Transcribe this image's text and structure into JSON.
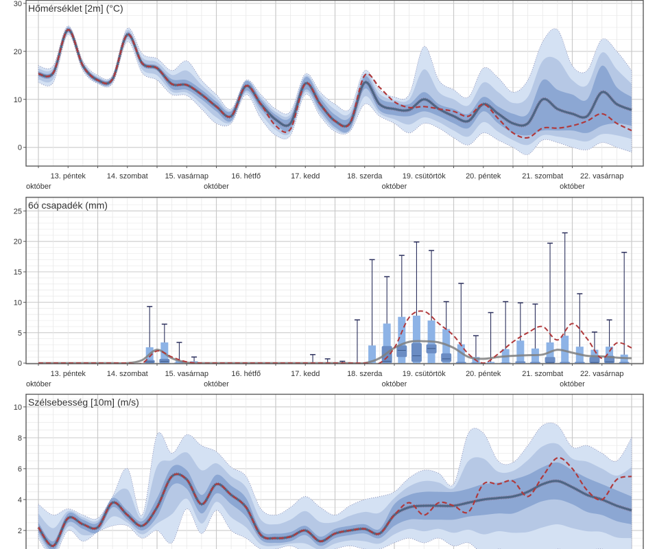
{
  "x_axis": {
    "unit": "hours since 13 October 00:00",
    "day_labels": [
      "13. péntek",
      "14. szombat",
      "15. vasárnap",
      "16. hétfő",
      "17. kedd",
      "18. szerda",
      "19. csütörtök",
      "20. péntek",
      "21. szombat",
      "22. vasárnap"
    ],
    "month_label": "október"
  },
  "colors": {
    "outer_band": "#d4e1f3",
    "inner_band": "#7e9ccc",
    "median_line": "#4d6584",
    "deterministic_line": "#b0393b",
    "box_light": "#8db3e6",
    "box_dark": "#6a8cc3",
    "whisker": "#2b2f5c",
    "mean_line": "#7f7f7f"
  },
  "chart_data": [
    {
      "type": "line",
      "title": "Hőmérséklet [2m] (°C)",
      "ylim": [
        -3.9,
        30.7
      ],
      "yticks": [
        "0",
        "10",
        "20",
        "30"
      ],
      "x_hours": [
        0,
        6,
        12,
        18,
        24,
        30,
        36,
        42,
        48,
        54,
        60,
        66,
        72,
        78,
        84,
        90,
        96,
        102,
        108,
        114,
        120,
        126,
        132,
        138,
        144,
        150,
        156,
        162,
        168,
        174,
        180,
        186,
        192,
        198,
        204,
        210,
        216,
        222,
        228,
        234,
        240
      ],
      "median": [
        15.3,
        15.5,
        24.5,
        17,
        14,
        14.2,
        23.5,
        17.5,
        16.5,
        13.2,
        13,
        11,
        8.5,
        6.5,
        12.8,
        9,
        5.8,
        5,
        13.3,
        9,
        5.5,
        5,
        13.5,
        9,
        8,
        7.8,
        10,
        8,
        6.5,
        5.5,
        9,
        7,
        5,
        5,
        10,
        8,
        7,
        6.5,
        11.5,
        9,
        7.8
      ],
      "deterministic": [
        15.3,
        15.5,
        24.5,
        17,
        14,
        14.2,
        23.5,
        17.5,
        16.5,
        13.2,
        13,
        11,
        8.5,
        6.5,
        12.8,
        9,
        4.5,
        3.8,
        13.3,
        9,
        5.5,
        5,
        15,
        12.5,
        9.5,
        8.3,
        8.5,
        8,
        7.5,
        6.5,
        9,
        6,
        3,
        2,
        4,
        4,
        4.5,
        5.5,
        7,
        5,
        3.5
      ],
      "min": [
        13.5,
        13.5,
        23.5,
        16,
        13.3,
        13.3,
        22,
        15.5,
        14,
        11,
        10.8,
        8,
        5,
        5,
        11,
        6,
        2.5,
        2.5,
        11,
        6.5,
        3.3,
        3.3,
        9,
        6.5,
        5,
        3,
        5,
        4,
        2,
        0.5,
        3,
        1.5,
        0,
        -1.5,
        1.5,
        1,
        0,
        -0.5,
        1,
        0,
        -1
      ],
      "max": [
        17,
        17,
        25.3,
        18,
        15,
        15,
        24.8,
        19.5,
        18.5,
        16,
        18,
        14,
        11,
        8,
        14,
        11,
        8,
        7.5,
        15.3,
        11.5,
        9,
        8,
        16,
        12,
        10.5,
        11,
        21,
        14,
        12,
        10.5,
        16.5,
        14.5,
        11.5,
        14,
        22,
        24.5,
        17,
        16,
        22.5,
        20,
        16
      ],
      "q25": [
        14.8,
        15,
        24,
        16.5,
        13.5,
        13.7,
        23,
        17,
        16,
        12.2,
        12,
        10,
        7.5,
        5.5,
        11.8,
        8,
        4.8,
        3.7,
        12,
        7.7,
        4.2,
        3.7,
        12.2,
        7.7,
        6.7,
        6.5,
        7.5,
        6.5,
        5,
        4,
        7.5,
        5,
        3,
        2.5,
        3.5,
        3.5,
        3.5,
        3,
        4.5,
        5,
        4.5
      ],
      "q75": [
        15.8,
        16,
        25,
        17.5,
        14.5,
        14.7,
        24,
        18,
        17,
        14.2,
        14,
        12,
        9.5,
        7.5,
        13.8,
        10,
        6.8,
        6.3,
        14.6,
        10.3,
        6.8,
        6.3,
        14.8,
        10.3,
        9.3,
        9,
        11.5,
        9,
        8,
        7,
        10.5,
        8.5,
        7,
        7,
        14,
        12,
        11,
        10,
        17,
        12.5,
        10.5
      ]
    },
    {
      "type": "box",
      "title": "6ó csapadék (mm)",
      "ylim": [
        -0.1,
        27.3
      ],
      "yticks": [
        "0",
        "5",
        "10",
        "15",
        "20",
        "25"
      ],
      "x_hours": [
        0,
        6,
        12,
        18,
        24,
        30,
        36,
        42,
        48,
        54,
        60,
        66,
        72,
        78,
        84,
        90,
        96,
        102,
        108,
        114,
        120,
        126,
        132,
        138,
        144,
        150,
        156,
        162,
        168,
        174,
        180,
        186,
        192,
        198,
        204,
        210,
        216,
        222,
        228,
        234,
        240
      ],
      "ensemble_mean": [
        0,
        0,
        0,
        0,
        0,
        0,
        0,
        0.5,
        2.2,
        0.8,
        0.1,
        0,
        0,
        0,
        0,
        0,
        0,
        0,
        0,
        0,
        0,
        0,
        0,
        0.8,
        2.5,
        3.5,
        3.6,
        3.4,
        2.5,
        1.0,
        0.7,
        1.0,
        1.2,
        1.3,
        1.4,
        2.2,
        1.7,
        1.2,
        1.1,
        0.9,
        0.8
      ],
      "deterministic": [
        0,
        0,
        0,
        0,
        0,
        0,
        0,
        0,
        2.0,
        1.0,
        0.2,
        0,
        0,
        0,
        0,
        0,
        0,
        0,
        0,
        0,
        0,
        0,
        0,
        0,
        2.5,
        7.5,
        8.5,
        6.5,
        4.5,
        1.5,
        0,
        1.5,
        3.5,
        5,
        6,
        3.8,
        6.5,
        4,
        0.8,
        3.3,
        2.5
      ],
      "boxes": [
        {
          "t": 45,
          "max": 9.3,
          "p90": 2.6,
          "q75": 0.5,
          "median": 0.2,
          "q25": 0
        },
        {
          "t": 51,
          "max": 6.4,
          "p90": 3.4,
          "q75": 0.7,
          "median": 0.3,
          "q25": 0
        },
        {
          "t": 57,
          "max": 3.4,
          "p90": 0.4,
          "q75": 0.1,
          "median": 0,
          "q25": 0
        },
        {
          "t": 63,
          "max": 1.0,
          "p90": 0.3,
          "q75": 0,
          "median": 0,
          "q25": 0
        },
        {
          "t": 111,
          "max": 1.4,
          "p90": 0,
          "q75": 0,
          "median": 0,
          "q25": 0
        },
        {
          "t": 117,
          "max": 0.7,
          "p90": 0,
          "q75": 0,
          "median": 0,
          "q25": 0
        },
        {
          "t": 123,
          "max": 0.3,
          "p90": 0,
          "q75": 0,
          "median": 0,
          "q25": 0
        },
        {
          "t": 129,
          "max": 7.1,
          "p90": 0,
          "q75": 0,
          "median": 0,
          "q25": 0
        },
        {
          "t": 135,
          "max": 17.0,
          "p90": 2.9,
          "q75": 0,
          "median": 0,
          "q25": 0
        },
        {
          "t": 141,
          "max": 14.2,
          "p90": 6.5,
          "q75": 2.8,
          "median": 0.3,
          "q25": 0
        },
        {
          "t": 147,
          "max": 17.7,
          "p90": 7.6,
          "q75": 2.9,
          "median": 2.1,
          "q25": 1.0
        },
        {
          "t": 153,
          "max": 19.9,
          "p90": 7.8,
          "q75": 3.3,
          "median": 1.2,
          "q25": 0.2
        },
        {
          "t": 159,
          "max": 18.5,
          "p90": 7.0,
          "q75": 3.1,
          "median": 2.4,
          "q25": 1.6
        },
        {
          "t": 165,
          "max": 10.1,
          "p90": 5.6,
          "q75": 1.6,
          "median": 0.7,
          "q25": 0.2
        },
        {
          "t": 171,
          "max": 13.1,
          "p90": 3.1,
          "q75": 0.2,
          "median": 0,
          "q25": 0
        },
        {
          "t": 177,
          "max": 4.5,
          "p90": 1.0,
          "q75": 0.1,
          "median": 0,
          "q25": 0
        },
        {
          "t": 183,
          "max": 8.3,
          "p90": 0.2,
          "q75": 0,
          "median": 0,
          "q25": 0
        },
        {
          "t": 189,
          "max": 10.1,
          "p90": 2.3,
          "q75": 0.1,
          "median": 0,
          "q25": 0
        },
        {
          "t": 195,
          "max": 9.9,
          "p90": 3.7,
          "q75": 0.3,
          "median": 0,
          "q25": 0
        },
        {
          "t": 201,
          "max": 9.7,
          "p90": 2.4,
          "q75": 0.2,
          "median": 0,
          "q25": 0
        },
        {
          "t": 207,
          "max": 19.7,
          "p90": 3.4,
          "q75": 1.0,
          "median": 0.1,
          "q25": 0
        },
        {
          "t": 213,
          "max": 21.4,
          "p90": 4.5,
          "q75": 0.2,
          "median": 0,
          "q25": 0
        },
        {
          "t": 219,
          "max": 11.4,
          "p90": 2.7,
          "q75": 0.2,
          "median": 0,
          "q25": 0
        },
        {
          "t": 225,
          "max": 5.1,
          "p90": 2.2,
          "q75": 1.0,
          "median": 0.1,
          "q25": 0
        },
        {
          "t": 231,
          "max": 7.1,
          "p90": 2.7,
          "q75": 1.2,
          "median": 0.2,
          "q25": 0
        },
        {
          "t": 237,
          "max": 18.2,
          "p90": 1.4,
          "q75": 0.2,
          "median": 0,
          "q25": 0
        }
      ]
    },
    {
      "type": "line",
      "title": "Szélsebesség [10m] (m/s)",
      "ylim": [
        0,
        10.84
      ],
      "yticks": [
        "2",
        "4",
        "6",
        "8",
        "10"
      ],
      "x_hours": [
        0,
        6,
        12,
        18,
        24,
        30,
        36,
        42,
        48,
        54,
        60,
        66,
        72,
        78,
        84,
        90,
        96,
        102,
        108,
        114,
        120,
        126,
        132,
        138,
        144,
        150,
        156,
        162,
        168,
        174,
        180,
        186,
        192,
        198,
        204,
        210,
        216,
        222,
        228,
        234,
        240
      ],
      "median": [
        2.2,
        1.0,
        2.8,
        2.4,
        2.2,
        3.8,
        3.0,
        2.3,
        3.5,
        5.5,
        5.3,
        3.7,
        5.0,
        4.3,
        3.5,
        1.7,
        1.5,
        1.6,
        2.0,
        1.3,
        1.8,
        2.0,
        2.1,
        1.8,
        3.0,
        3.5,
        3.6,
        3.6,
        3.6,
        3.8,
        4.0,
        4.1,
        4.2,
        4.5,
        5.0,
        5.2,
        4.8,
        4.3,
        4.0,
        3.6,
        3.3
      ],
      "deterministic": [
        2.2,
        1.0,
        2.8,
        2.4,
        2.2,
        3.8,
        3.0,
        2.3,
        3.5,
        5.5,
        5.3,
        3.7,
        5.0,
        4.3,
        3.5,
        1.7,
        1.5,
        1.6,
        2.0,
        1.3,
        1.8,
        2.0,
        2.1,
        1.8,
        3.0,
        3.8,
        3.0,
        3.8,
        3.6,
        3.2,
        5.0,
        5.0,
        5.2,
        4.2,
        5.5,
        6.7,
        6.0,
        4.6,
        4.0,
        5.3,
        5.5
      ],
      "min": [
        1.5,
        0.3,
        2.0,
        1.3,
        1.9,
        2.3,
        2.3,
        1.5,
        2.0,
        1.2,
        3.4,
        1.8,
        3.3,
        2.0,
        1.5,
        0.8,
        0.8,
        1.0,
        0.6,
        0.5,
        0.8,
        1.0,
        0.8,
        0.8,
        1.2,
        1.5,
        1.2,
        1.5,
        1.0,
        1.2,
        0.5,
        0.8,
        0.6,
        0.3,
        0.5,
        0.8,
        0.6,
        0.7,
        0.8,
        0.5,
        0.6
      ],
      "max": [
        3.7,
        3.0,
        3.4,
        3.0,
        2.8,
        4.2,
        6.0,
        3.0,
        8.2,
        7.0,
        8.2,
        7.5,
        7.1,
        6.1,
        5.5,
        3.4,
        3.0,
        3.5,
        4.2,
        3.5,
        3.0,
        3.6,
        4.0,
        4.2,
        4.5,
        5.4,
        5.9,
        5.7,
        5.0,
        8.3,
        8.3,
        6.5,
        6.4,
        7.5,
        8.8,
        8.8,
        7.4,
        7.5,
        7.0,
        6.5,
        8.0
      ],
      "q25": [
        1.9,
        0.7,
        2.5,
        2.1,
        1.9,
        3.5,
        2.7,
        2.0,
        2.9,
        4.9,
        4.7,
        3.1,
        4.4,
        3.7,
        2.9,
        1.4,
        1.2,
        1.3,
        1.7,
        1.0,
        1.5,
        1.7,
        1.8,
        1.5,
        2.3,
        2.7,
        2.7,
        2.7,
        2.7,
        2.9,
        3.0,
        3.1,
        3.1,
        3.5,
        3.9,
        4.0,
        3.7,
        3.2,
        3.0,
        2.6,
        2.4
      ],
      "q75": [
        2.5,
        1.3,
        3.1,
        2.7,
        2.5,
        4.1,
        3.3,
        2.6,
        4.1,
        6.1,
        5.9,
        4.3,
        5.6,
        4.9,
        4.1,
        2.0,
        1.8,
        1.9,
        2.3,
        1.6,
        2.1,
        2.3,
        2.4,
        2.1,
        3.7,
        4.3,
        4.5,
        4.5,
        4.5,
        4.7,
        5.0,
        5.1,
        5.3,
        5.6,
        6.1,
        6.4,
        5.9,
        5.4,
        5.0,
        4.6,
        4.2
      ]
    }
  ]
}
